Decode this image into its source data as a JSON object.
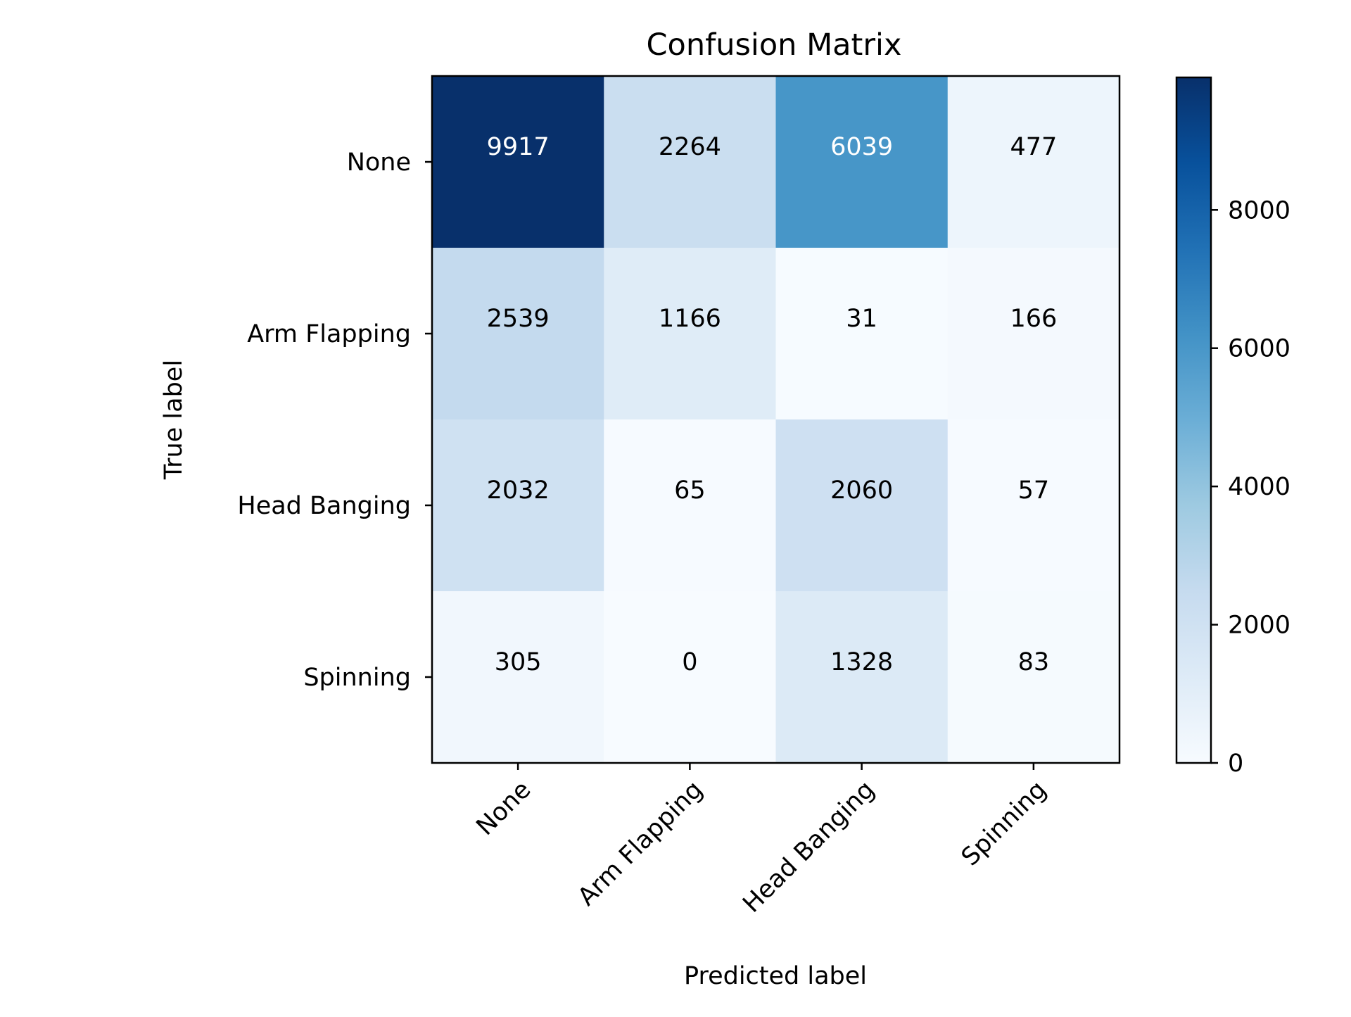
{
  "chart_data": {
    "type": "heatmap",
    "title": "Confusion Matrix",
    "xlabel": "Predicted label",
    "ylabel": "True label",
    "x_categories": [
      "None",
      "Arm Flapping",
      "Head Banging",
      "Spinning"
    ],
    "y_categories": [
      "None",
      "Arm Flapping",
      "Head Banging",
      "Spinning"
    ],
    "values": [
      [
        9917,
        2264,
        6039,
        477
      ],
      [
        2539,
        1166,
        31,
        166
      ],
      [
        2032,
        65,
        2060,
        57
      ],
      [
        305,
        0,
        1328,
        83
      ]
    ],
    "colormap": "Blues",
    "colorbar": {
      "range": [
        0,
        9917
      ],
      "ticks": [
        0,
        2000,
        4000,
        6000,
        8000
      ]
    },
    "grid": false,
    "x_tick_rotation_deg": 45
  }
}
